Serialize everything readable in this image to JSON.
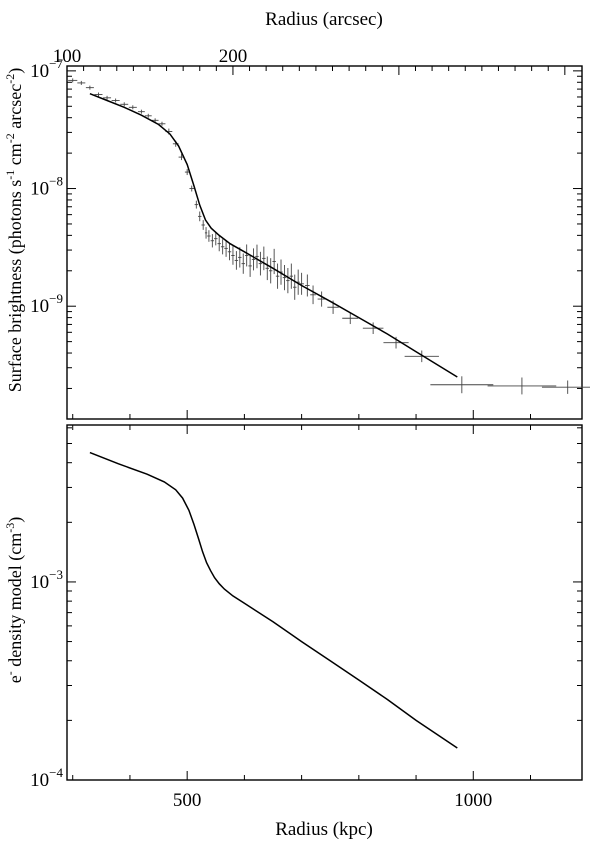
{
  "chart_data": [
    {
      "type": "scatter",
      "panel": "top",
      "xlabel_top": "Radius (arcsec)",
      "top_axis_ticks": [
        {
          "value": 100,
          "label": "100",
          "x_kpc": 290
        },
        {
          "value": 200,
          "label": "200",
          "x_kpc": 580
        }
      ],
      "ylabel": {
        "parts": [
          {
            "text": "Surface brightness (photons s",
            "sup": false
          },
          {
            "text": "-1",
            "sup": true
          },
          {
            "text": " cm",
            "sup": false
          },
          {
            "text": "-2",
            "sup": true
          },
          {
            "text": " arcsec",
            "sup": false
          },
          {
            "text": "-2",
            "sup": true
          },
          {
            "text": ")",
            "sup": false
          }
        ]
      },
      "yscale": "log",
      "xlim": [
        290,
        1190
      ],
      "ylim": [
        1.1e-10,
        1.1e-07
      ],
      "y_ticks": [
        {
          "value": 1e-07,
          "base": "10",
          "exp": "−7"
        },
        {
          "value": 1e-08,
          "base": "10",
          "exp": "−8"
        },
        {
          "value": 1e-09,
          "base": "10",
          "exp": "−9"
        }
      ],
      "x_ticks": [
        500,
        1000
      ],
      "series": [
        {
          "kind": "data",
          "x": [
            300,
            315,
            330,
            345,
            360,
            375,
            390,
            405,
            420,
            432,
            444,
            456,
            468,
            480,
            490,
            500,
            508,
            516,
            522,
            528,
            533,
            538,
            544,
            550,
            556,
            562,
            568,
            574,
            580,
            586,
            592,
            598,
            604,
            610,
            616,
            622,
            628,
            634,
            640,
            646,
            652,
            658,
            664,
            670,
            676,
            682,
            688,
            694,
            700,
            710,
            720,
            735,
            755,
            785,
            825,
            865,
            910,
            980,
            1085,
            1165
          ],
          "y": [
            8.3e-08,
            7.9e-08,
            7.2e-08,
            6.3e-08,
            5.9e-08,
            5.6e-08,
            5.2e-08,
            4.9e-08,
            4.5e-08,
            4.15e-08,
            3.8e-08,
            3.55e-08,
            3.05e-08,
            2.4e-08,
            1.85e-08,
            1.38e-08,
            1e-08,
            7.3e-09,
            5.8e-09,
            4.9e-09,
            4.2e-09,
            3.95e-09,
            3.6e-09,
            3.75e-09,
            3.4e-09,
            3.2e-09,
            3.1e-09,
            2.9e-09,
            2.7e-09,
            2.45e-09,
            2.6e-09,
            2.3e-09,
            2.7e-09,
            2.2e-09,
            2.5e-09,
            2.65e-09,
            2.3e-09,
            2.55e-09,
            2.1e-09,
            2e-09,
            2.4e-09,
            1.8e-09,
            1.95e-09,
            1.75e-09,
            1.65e-09,
            1.8e-09,
            1.45e-09,
            1.6e-09,
            1.55e-09,
            1.5e-09,
            1.25e-09,
            1.15e-09,
            9.8e-10,
            7.9e-10,
            6.5e-10,
            4.9e-10,
            3.75e-10,
            2.15e-10,
            2.1e-10,
            2.05e-10
          ],
          "xerr": [
            8,
            7,
            7,
            7,
            7,
            7,
            7,
            7,
            6,
            6,
            6,
            6,
            6,
            5,
            5,
            4,
            4,
            3,
            3,
            3,
            2,
            3,
            3,
            3,
            3,
            3,
            3,
            3,
            3,
            3,
            3,
            3,
            3,
            3,
            3,
            3,
            3,
            3,
            3,
            3,
            3,
            3,
            3,
            3,
            3,
            3,
            3,
            3,
            4,
            4,
            5,
            7,
            10,
            14,
            18,
            22,
            30,
            55,
            60,
            45
          ],
          "yerr": [
            0.02,
            0.02,
            0.02,
            0.02,
            0.02,
            0.02,
            0.02,
            0.02,
            0.02,
            0.02,
            0.02,
            0.02,
            0.03,
            0.03,
            0.03,
            0.03,
            0.03,
            0.04,
            0.05,
            0.05,
            0.06,
            0.06,
            0.07,
            0.07,
            0.08,
            0.08,
            0.09,
            0.09,
            0.1,
            0.1,
            0.11,
            0.11,
            0.12,
            0.12,
            0.12,
            0.13,
            0.13,
            0.13,
            0.13,
            0.14,
            0.14,
            0.14,
            0.14,
            0.14,
            0.14,
            0.14,
            0.14,
            0.14,
            0.12,
            0.12,
            0.1,
            0.08,
            0.07,
            0.06,
            0.06,
            0.06,
            0.06,
            0.09,
            0.09,
            0.07
          ]
        },
        {
          "kind": "model",
          "x": [
            330,
            360,
            390,
            420,
            450,
            470,
            485,
            500,
            512,
            522,
            532,
            542,
            556,
            575,
            600,
            650,
            700,
            750,
            800,
            850,
            900,
            972
          ],
          "y": [
            6.4e-08,
            5.6e-08,
            4.9e-08,
            4.2e-08,
            3.5e-08,
            2.9e-08,
            2.3e-08,
            1.6e-08,
            1.05e-08,
            7.2e-09,
            5.4e-09,
            4.6e-09,
            4e-09,
            3.4e-09,
            2.9e-09,
            2.1e-09,
            1.5e-09,
            1.1e-09,
            8e-10,
            5.8e-10,
            4.1e-10,
            2.5e-10
          ]
        }
      ]
    },
    {
      "type": "line",
      "panel": "bottom",
      "xlabel": "Radius (kpc)",
      "ylabel": {
        "parts": [
          {
            "text": "e",
            "sup": false
          },
          {
            "text": "-",
            "sup": true
          },
          {
            "text": " density model (cm",
            "sup": false
          },
          {
            "text": "-3",
            "sup": true
          },
          {
            "text": ")",
            "sup": false
          }
        ]
      },
      "yscale": "log",
      "xlim": [
        290,
        1190
      ],
      "ylim": [
        0.0001,
        0.0062
      ],
      "y_ticks": [
        {
          "value": 0.001,
          "base": "10",
          "exp": "−3"
        },
        {
          "value": 0.0001,
          "base": "10",
          "exp": "−4"
        }
      ],
      "x_ticks": [
        {
          "value": 500,
          "label": "500"
        },
        {
          "value": 1000,
          "label": "1000"
        }
      ],
      "series": [
        {
          "x": [
            330,
            380,
            430,
            460,
            480,
            492,
            503,
            512,
            520,
            527,
            534,
            541,
            548,
            556,
            565,
            580,
            600,
            650,
            700,
            750,
            800,
            850,
            900,
            972
          ],
          "y": [
            0.0045,
            0.00395,
            0.0035,
            0.0032,
            0.00292,
            0.00265,
            0.0023,
            0.00195,
            0.00165,
            0.00142,
            0.00125,
            0.00114,
            0.00105,
            0.00098,
            0.00092,
            0.00085,
            0.00078,
            0.00063,
            0.0005,
            0.0004,
            0.00032,
            0.000255,
            0.0002,
            0.000145
          ]
        }
      ]
    }
  ]
}
